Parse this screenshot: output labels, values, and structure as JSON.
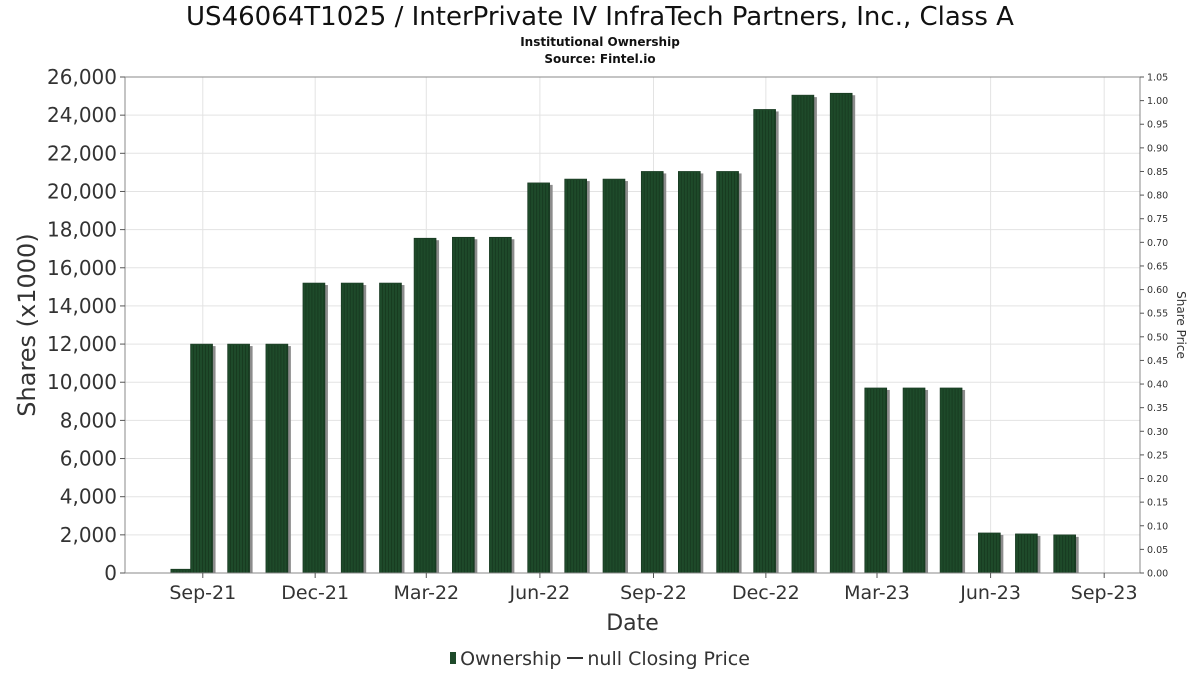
{
  "header": {
    "title": "US46064T1025 / InterPrivate IV InfraTech Partners, Inc., Class A",
    "subtitle": "Institutional Ownership",
    "source": "Source: Fintel.io"
  },
  "legend": {
    "ownership_label": "Ownership",
    "price_label": "null Closing Price"
  },
  "colors": {
    "bar": "#1e4a2a",
    "bar_shadow": "#8c8c8c",
    "grid": "#e3e3e3"
  },
  "chart_data": {
    "type": "bar",
    "title": "US46064T1025 / InterPrivate IV InfraTech Partners, Inc., Class A",
    "xlabel": "Date",
    "ylabel": "Shares (x1000)",
    "y2label": "Share Price",
    "ylim": [
      0,
      26000
    ],
    "y2lim": [
      0,
      1.05
    ],
    "xlim": [
      "2021-06-30",
      "2023-09-30"
    ],
    "grid": true,
    "legend_position": "bottom",
    "x_ticks": [
      {
        "date": "2021-09-01",
        "label": "Sep-21"
      },
      {
        "date": "2021-12-01",
        "label": "Dec-21"
      },
      {
        "date": "2022-03-01",
        "label": "Mar-22"
      },
      {
        "date": "2022-06-01",
        "label": "Jun-22"
      },
      {
        "date": "2022-09-01",
        "label": "Sep-22"
      },
      {
        "date": "2022-12-01",
        "label": "Dec-22"
      },
      {
        "date": "2023-03-01",
        "label": "Mar-23"
      },
      {
        "date": "2023-06-01",
        "label": "Jun-23"
      },
      {
        "date": "2023-09-01",
        "label": "Sep-23"
      }
    ],
    "y_ticks": [
      "0",
      "2,000",
      "4,000",
      "6,000",
      "8,000",
      "10,000",
      "12,000",
      "14,000",
      "16,000",
      "18,000",
      "20,000",
      "22,000",
      "24,000",
      "26,000"
    ],
    "y2_ticks": [
      "0.00",
      "0.05",
      "0.10",
      "0.15",
      "0.20",
      "0.25",
      "0.30",
      "0.35",
      "0.40",
      "0.45",
      "0.50",
      "0.55",
      "0.60",
      "0.65",
      "0.70",
      "0.75",
      "0.80",
      "0.85",
      "0.90",
      "0.95",
      "1.00",
      "1.05"
    ],
    "series": [
      {
        "name": "Ownership",
        "x": [
          "2021-08-15",
          "2021-08-31",
          "2021-09-30",
          "2021-10-31",
          "2021-11-30",
          "2021-12-31",
          "2022-01-31",
          "2022-02-28",
          "2022-03-31",
          "2022-04-30",
          "2022-05-31",
          "2022-06-30",
          "2022-07-31",
          "2022-08-31",
          "2022-09-30",
          "2022-10-31",
          "2022-11-30",
          "2022-12-31",
          "2023-01-31",
          "2023-02-28",
          "2023-03-31",
          "2023-04-30",
          "2023-05-31",
          "2023-06-30",
          "2023-07-31",
          "2023-08-31"
        ],
        "values": [
          200,
          12000,
          12000,
          12000,
          15200,
          15200,
          15200,
          17550,
          17600,
          17600,
          20450,
          20650,
          20650,
          21050,
          21050,
          21050,
          24300,
          25050,
          25150,
          9700,
          9700,
          9700,
          2100,
          2050,
          2000,
          0
        ]
      }
    ]
  }
}
